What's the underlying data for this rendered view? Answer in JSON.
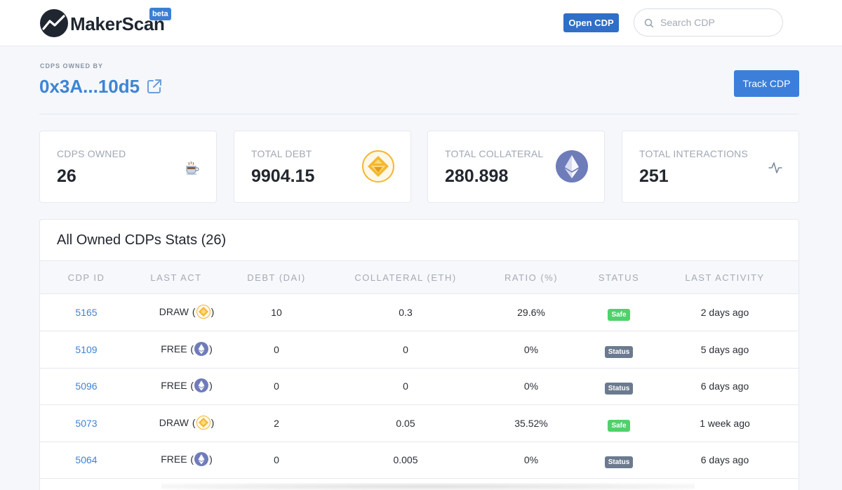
{
  "header": {
    "logo_text": "MakerScan",
    "beta_label": "beta",
    "open_cdp_label": "Open CDP",
    "search_placeholder": "Search CDP"
  },
  "owner": {
    "label": "CDPS OWNED BY",
    "address": "0x3A...10d5",
    "track_label": "Track CDP"
  },
  "stats": [
    {
      "label": "CDPS OWNED",
      "value": "26",
      "icon": "coffee-cup-icon"
    },
    {
      "label": "TOTAL DEBT",
      "value": "9904.15",
      "icon": "dai-coin-icon"
    },
    {
      "label": "TOTAL COLLATERAL",
      "value": "280.898",
      "icon": "ethereum-coin-icon"
    },
    {
      "label": "TOTAL INTERACTIONS",
      "value": "251",
      "icon": "activity-pulse-icon"
    }
  ],
  "table": {
    "title": "All Owned CDPs Stats (26)",
    "columns": [
      "CDP ID",
      "LAST ACT",
      "DEBT (DAI)",
      "COLLATERAL (ETH)",
      "RATIO (%)",
      "STATUS",
      "LAST ACTIVITY"
    ],
    "rows": [
      {
        "id": "5165",
        "act": "DRAW",
        "act_coin": "dai",
        "debt": "10",
        "collateral": "0.3",
        "ratio": "29.6%",
        "status": "Safe",
        "status_type": "safe",
        "activity": "2 days ago"
      },
      {
        "id": "5109",
        "act": "FREE",
        "act_coin": "eth",
        "debt": "0",
        "collateral": "0",
        "ratio": "0%",
        "status": "Status",
        "status_type": "neutral",
        "activity": "5 days ago"
      },
      {
        "id": "5096",
        "act": "FREE",
        "act_coin": "eth",
        "debt": "0",
        "collateral": "0",
        "ratio": "0%",
        "status": "Status",
        "status_type": "neutral",
        "activity": "6 days ago"
      },
      {
        "id": "5073",
        "act": "DRAW",
        "act_coin": "dai",
        "debt": "2",
        "collateral": "0.05",
        "ratio": "35.52%",
        "status": "Safe",
        "status_type": "safe",
        "activity": "1 week ago"
      },
      {
        "id": "5064",
        "act": "FREE",
        "act_coin": "eth",
        "debt": "0",
        "collateral": "0.005",
        "ratio": "0%",
        "status": "Status",
        "status_type": "neutral",
        "activity": "6 days ago"
      }
    ]
  },
  "colors": {
    "brand_blue": "#3b7fdb",
    "link_blue": "#3e84d4",
    "safe_green": "#4fd16b",
    "status_gray": "#6b7a8e",
    "dai_gold": "#f4b731",
    "eth_purple": "#6f7cba"
  }
}
